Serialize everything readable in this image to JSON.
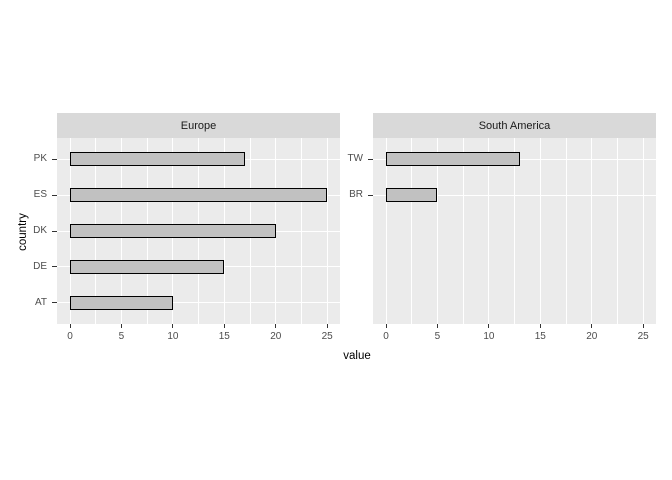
{
  "chart_data": {
    "type": "bar",
    "orientation": "horizontal",
    "xlabel": "value",
    "ylabel": "country",
    "xlim": [
      0,
      25
    ],
    "x_major_ticks": [
      0,
      5,
      10,
      15,
      20,
      25
    ],
    "x_minor_ticks": [
      2.5,
      7.5,
      12.5,
      17.5,
      22.5
    ],
    "grid": "on",
    "legend": "none",
    "facets": [
      {
        "label": "Europe",
        "categories": [
          "PK",
          "ES",
          "DK",
          "DE",
          "AT"
        ],
        "values": [
          17,
          25,
          20,
          15,
          10
        ]
      },
      {
        "label": "South America",
        "categories": [
          "TW",
          "BR"
        ],
        "values": [
          13,
          5
        ]
      }
    ],
    "colors": {
      "panel_bg": "#ebebeb",
      "strip_bg": "#d9d9d9",
      "bar_fill": "#c1c1c1",
      "bar_border": "#000000",
      "grid": "#ffffff",
      "tick_mark": "#333333",
      "tick_label": "#4d4d4d",
      "axis_title": "#000000"
    }
  }
}
